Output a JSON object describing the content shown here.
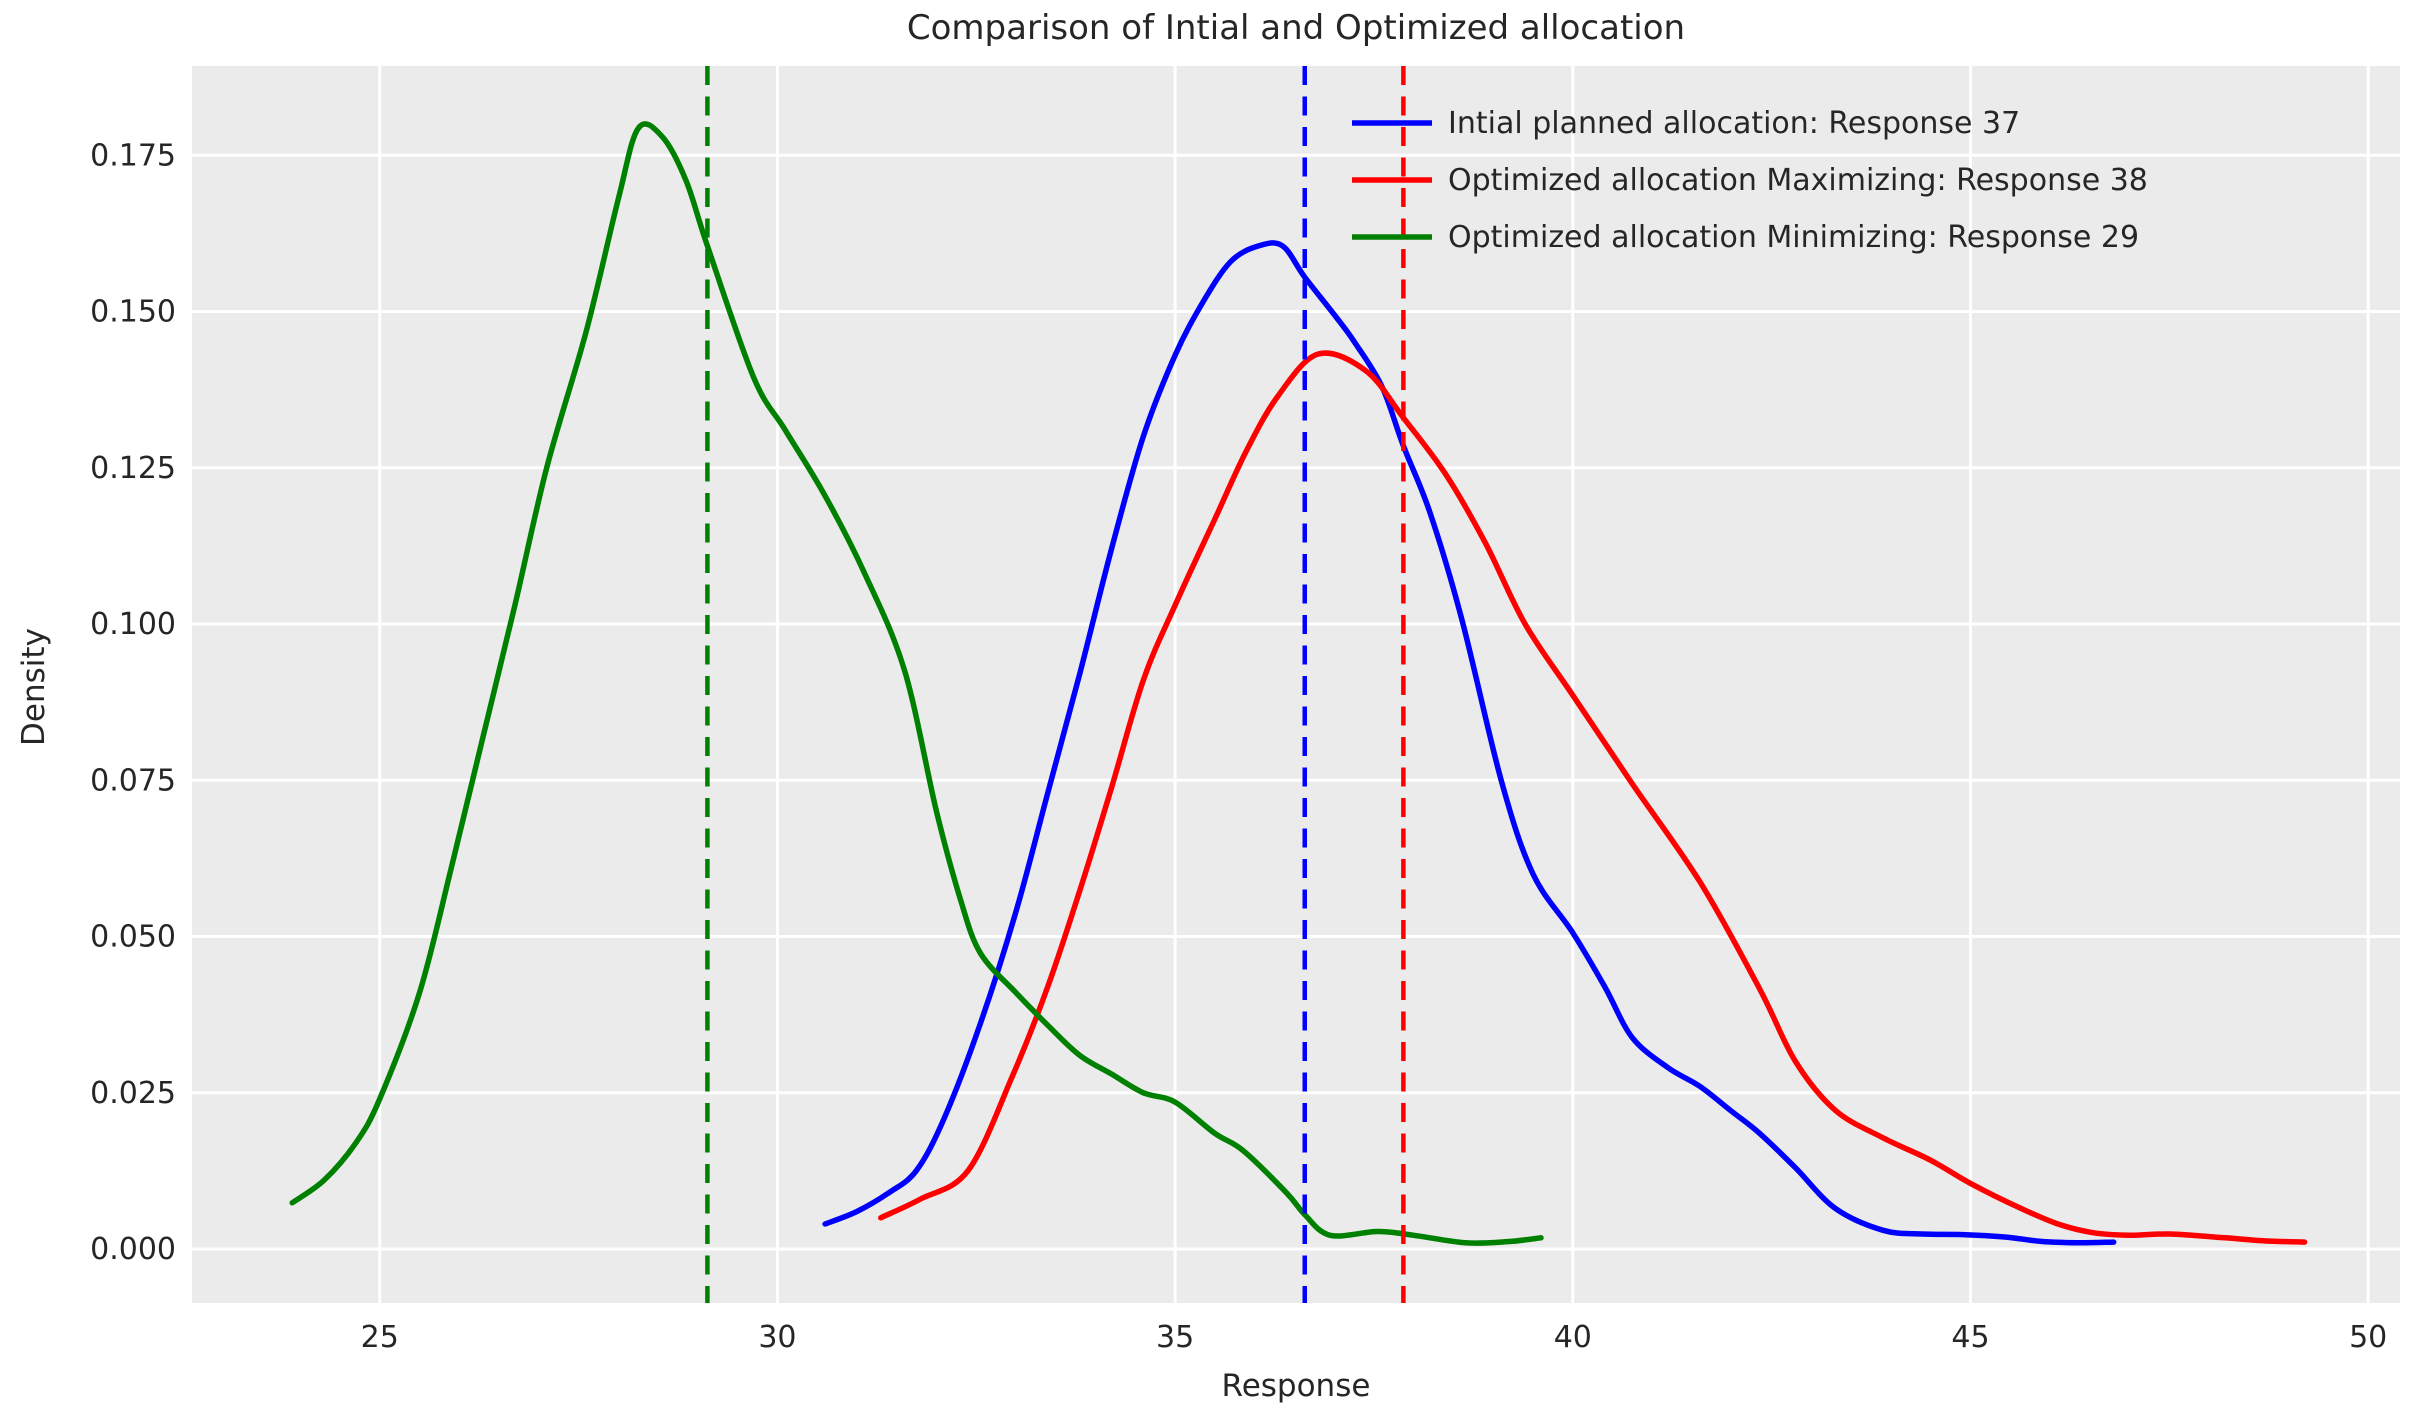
{
  "page": {
    "background": "#ffffff"
  },
  "chart_data": {
    "type": "line",
    "title": "Comparison of Intial and Optimized allocation",
    "xlabel": "Response",
    "ylabel": "Density",
    "x_ticks": [
      25,
      30,
      35,
      40,
      45,
      50
    ],
    "y_ticks": [
      0.0,
      0.025,
      0.05,
      0.075,
      0.1,
      0.125,
      0.15,
      0.175
    ],
    "y_tick_decimals": 3,
    "xlim": [
      22.64,
      50.4
    ],
    "ylim": [
      -0.00864,
      0.18928
    ],
    "grid": true,
    "legend_position": "upper right",
    "plot_background": "#ebebeb",
    "grid_color": "#ffffff",
    "text_color": "#262626",
    "series": [
      {
        "name": "Intial planned allocation: Response 37",
        "color": "#0000ff",
        "mean_line": 36.63,
        "points": [
          [
            30.6,
            0.004
          ],
          [
            31.0,
            0.006
          ],
          [
            31.4,
            0.009
          ],
          [
            31.75,
            0.0126
          ],
          [
            32.1,
            0.021
          ],
          [
            32.55,
            0.036
          ],
          [
            33.0,
            0.054
          ],
          [
            33.4,
            0.073
          ],
          [
            33.8,
            0.092
          ],
          [
            34.2,
            0.112
          ],
          [
            34.6,
            0.13
          ],
          [
            35.0,
            0.143
          ],
          [
            35.35,
            0.1515
          ],
          [
            35.7,
            0.158
          ],
          [
            36.05,
            0.1605
          ],
          [
            36.35,
            0.1605
          ],
          [
            36.63,
            0.1555
          ],
          [
            37.0,
            0.1495
          ],
          [
            37.25,
            0.1452
          ],
          [
            37.6,
            0.138
          ],
          [
            37.87,
            0.1285
          ],
          [
            38.2,
            0.118
          ],
          [
            38.6,
            0.101
          ],
          [
            39.1,
            0.075
          ],
          [
            39.5,
            0.06
          ],
          [
            40.0,
            0.0506
          ],
          [
            40.4,
            0.042
          ],
          [
            40.75,
            0.0338
          ],
          [
            41.2,
            0.029
          ],
          [
            41.6,
            0.026
          ],
          [
            42.0,
            0.022
          ],
          [
            42.35,
            0.0185
          ],
          [
            42.8,
            0.013
          ],
          [
            43.3,
            0.0065
          ],
          [
            43.9,
            0.003
          ],
          [
            44.4,
            0.0024
          ],
          [
            44.9,
            0.0023
          ],
          [
            45.45,
            0.0019
          ],
          [
            45.9,
            0.0012
          ],
          [
            46.35,
            0.001
          ],
          [
            46.8,
            0.0011
          ]
        ]
      },
      {
        "name": "Optimized allocation Maximizing: Response 38",
        "color": "#ff0000",
        "mean_line": 37.87,
        "points": [
          [
            31.3,
            0.005
          ],
          [
            31.8,
            0.008
          ],
          [
            32.4,
            0.0126
          ],
          [
            32.95,
            0.0275
          ],
          [
            33.4,
            0.042
          ],
          [
            33.8,
            0.0573
          ],
          [
            34.2,
            0.0738
          ],
          [
            34.6,
            0.091
          ],
          [
            35.0,
            0.103
          ],
          [
            35.5,
            0.1168
          ],
          [
            35.9,
            0.1278
          ],
          [
            36.3,
            0.1366
          ],
          [
            36.8,
            0.1432
          ],
          [
            37.4,
            0.1405
          ],
          [
            37.87,
            0.133
          ],
          [
            38.4,
            0.124
          ],
          [
            38.9,
            0.113
          ],
          [
            39.4,
            0.1
          ],
          [
            40.0,
            0.0886
          ],
          [
            40.75,
            0.0744
          ],
          [
            41.6,
            0.0587
          ],
          [
            42.35,
            0.0416
          ],
          [
            42.8,
            0.03
          ],
          [
            43.3,
            0.0222
          ],
          [
            43.9,
            0.0178
          ],
          [
            44.5,
            0.0142
          ],
          [
            45.0,
            0.0105
          ],
          [
            45.6,
            0.0067
          ],
          [
            46.1,
            0.004
          ],
          [
            46.55,
            0.0026
          ],
          [
            47.0,
            0.0022
          ],
          [
            47.5,
            0.0024
          ],
          [
            48.2,
            0.0018
          ],
          [
            48.7,
            0.0013
          ],
          [
            49.2,
            0.0011
          ]
        ]
      },
      {
        "name": "Optimized allocation Minimizing: Response 29",
        "color": "#008000",
        "mean_line": 29.12,
        "points": [
          [
            23.9,
            0.0074
          ],
          [
            24.3,
            0.011
          ],
          [
            24.7,
            0.017
          ],
          [
            25.0,
            0.024
          ],
          [
            25.5,
            0.041
          ],
          [
            25.9,
            0.061
          ],
          [
            26.3,
            0.082
          ],
          [
            26.7,
            0.103
          ],
          [
            27.1,
            0.125
          ],
          [
            27.6,
            0.147
          ],
          [
            28.0,
            0.168
          ],
          [
            28.25,
            0.1793
          ],
          [
            28.55,
            0.178
          ],
          [
            28.85,
            0.171
          ],
          [
            29.12,
            0.1605
          ],
          [
            29.7,
            0.1395
          ],
          [
            30.1,
            0.131
          ],
          [
            30.6,
            0.1205
          ],
          [
            31.1,
            0.108
          ],
          [
            31.6,
            0.0925
          ],
          [
            32.0,
            0.07
          ],
          [
            32.3,
            0.056
          ],
          [
            32.55,
            0.0474
          ],
          [
            33.0,
            0.041
          ],
          [
            33.4,
            0.0358
          ],
          [
            33.8,
            0.031
          ],
          [
            34.2,
            0.028
          ],
          [
            34.6,
            0.025
          ],
          [
            35.0,
            0.0235
          ],
          [
            35.5,
            0.0185
          ],
          [
            35.85,
            0.0158
          ],
          [
            36.4,
            0.009
          ],
          [
            36.63,
            0.0055
          ],
          [
            36.95,
            0.0022
          ],
          [
            37.55,
            0.0028
          ],
          [
            38.0,
            0.0022
          ],
          [
            38.65,
            0.001
          ],
          [
            39.2,
            0.0012
          ],
          [
            39.6,
            0.0018
          ]
        ]
      }
    ]
  }
}
